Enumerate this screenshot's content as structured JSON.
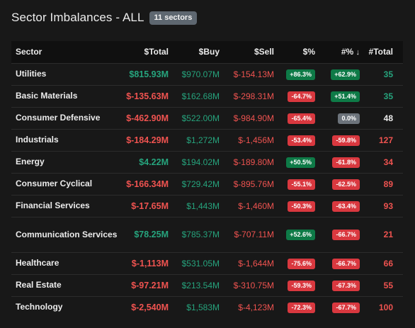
{
  "header": {
    "title": "Sector Imbalances - ALL",
    "badge": "11 sectors"
  },
  "colors": {
    "positive": "#26a47d",
    "negative": "#ef5350",
    "neutral_badge": "#6c737b",
    "background": "#181818"
  },
  "columns": {
    "sector": "Sector",
    "total": "$Total",
    "buy": "$Buy",
    "sell": "$Sell",
    "pct": "$%",
    "count_pct": "#%",
    "count_pct_sort_icon": "↓",
    "count": "#Total"
  },
  "rows": [
    {
      "sector": "Utilities",
      "total": "$815.93M",
      "total_sign": "pos",
      "buy": "$970.07M",
      "sell": "$-154.13M",
      "pct": "+86.3%",
      "pct_sign": "pos",
      "count_pct": "+62.9%",
      "count_pct_sign": "pos",
      "count": "35",
      "count_sign": "pos"
    },
    {
      "sector": "Basic Materials",
      "total": "$-135.63M",
      "total_sign": "neg",
      "buy": "$162.68M",
      "sell": "$-298.31M",
      "pct": "-64.7%",
      "pct_sign": "neg",
      "count_pct": "+51.4%",
      "count_pct_sign": "pos",
      "count": "35",
      "count_sign": "pos"
    },
    {
      "sector": "Consumer Defensive",
      "total": "$-462.90M",
      "total_sign": "neg",
      "buy": "$522.00M",
      "sell": "$-984.90M",
      "pct": "-65.4%",
      "pct_sign": "neg",
      "count_pct": "0.0%",
      "count_pct_sign": "neutral",
      "count": "48",
      "count_sign": "neutral"
    },
    {
      "sector": "Industrials",
      "total": "$-184.29M",
      "total_sign": "neg",
      "buy": "$1,272M",
      "sell": "$-1,456M",
      "pct": "-53.4%",
      "pct_sign": "neg",
      "count_pct": "-59.8%",
      "count_pct_sign": "neg",
      "count": "127",
      "count_sign": "neg"
    },
    {
      "sector": "Energy",
      "total": "$4.22M",
      "total_sign": "pos",
      "buy": "$194.02M",
      "sell": "$-189.80M",
      "pct": "+50.5%",
      "pct_sign": "pos",
      "count_pct": "-61.8%",
      "count_pct_sign": "neg",
      "count": "34",
      "count_sign": "neg"
    },
    {
      "sector": "Consumer Cyclical",
      "total": "$-166.34M",
      "total_sign": "neg",
      "buy": "$729.42M",
      "sell": "$-895.76M",
      "pct": "-55.1%",
      "pct_sign": "neg",
      "count_pct": "-62.5%",
      "count_pct_sign": "neg",
      "count": "89",
      "count_sign": "neg"
    },
    {
      "sector": "Financial Services",
      "total": "$-17.65M",
      "total_sign": "neg",
      "buy": "$1,443M",
      "sell": "$-1,460M",
      "pct": "-50.3%",
      "pct_sign": "neg",
      "count_pct": "-63.4%",
      "count_pct_sign": "neg",
      "count": "93",
      "count_sign": "neg"
    },
    {
      "sector": "Communication Services",
      "total": "$78.25M",
      "total_sign": "pos",
      "buy": "$785.37M",
      "sell": "$-707.11M",
      "pct": "+52.6%",
      "pct_sign": "pos",
      "count_pct": "-66.7%",
      "count_pct_sign": "neg",
      "count": "21",
      "count_sign": "neg",
      "tall": true
    },
    {
      "sector": "Healthcare",
      "total": "$-1,113M",
      "total_sign": "neg",
      "buy": "$531.05M",
      "sell": "$-1,644M",
      "pct": "-75.6%",
      "pct_sign": "neg",
      "count_pct": "-66.7%",
      "count_pct_sign": "neg",
      "count": "66",
      "count_sign": "neg"
    },
    {
      "sector": "Real Estate",
      "total": "$-97.21M",
      "total_sign": "neg",
      "buy": "$213.54M",
      "sell": "$-310.75M",
      "pct": "-59.3%",
      "pct_sign": "neg",
      "count_pct": "-67.3%",
      "count_pct_sign": "neg",
      "count": "55",
      "count_sign": "neg"
    },
    {
      "sector": "Technology",
      "total": "$-2,540M",
      "total_sign": "neg",
      "buy": "$1,583M",
      "sell": "$-4,123M",
      "pct": "-72.3%",
      "pct_sign": "neg",
      "count_pct": "-67.7%",
      "count_pct_sign": "neg",
      "count": "100",
      "count_sign": "neg"
    }
  ]
}
